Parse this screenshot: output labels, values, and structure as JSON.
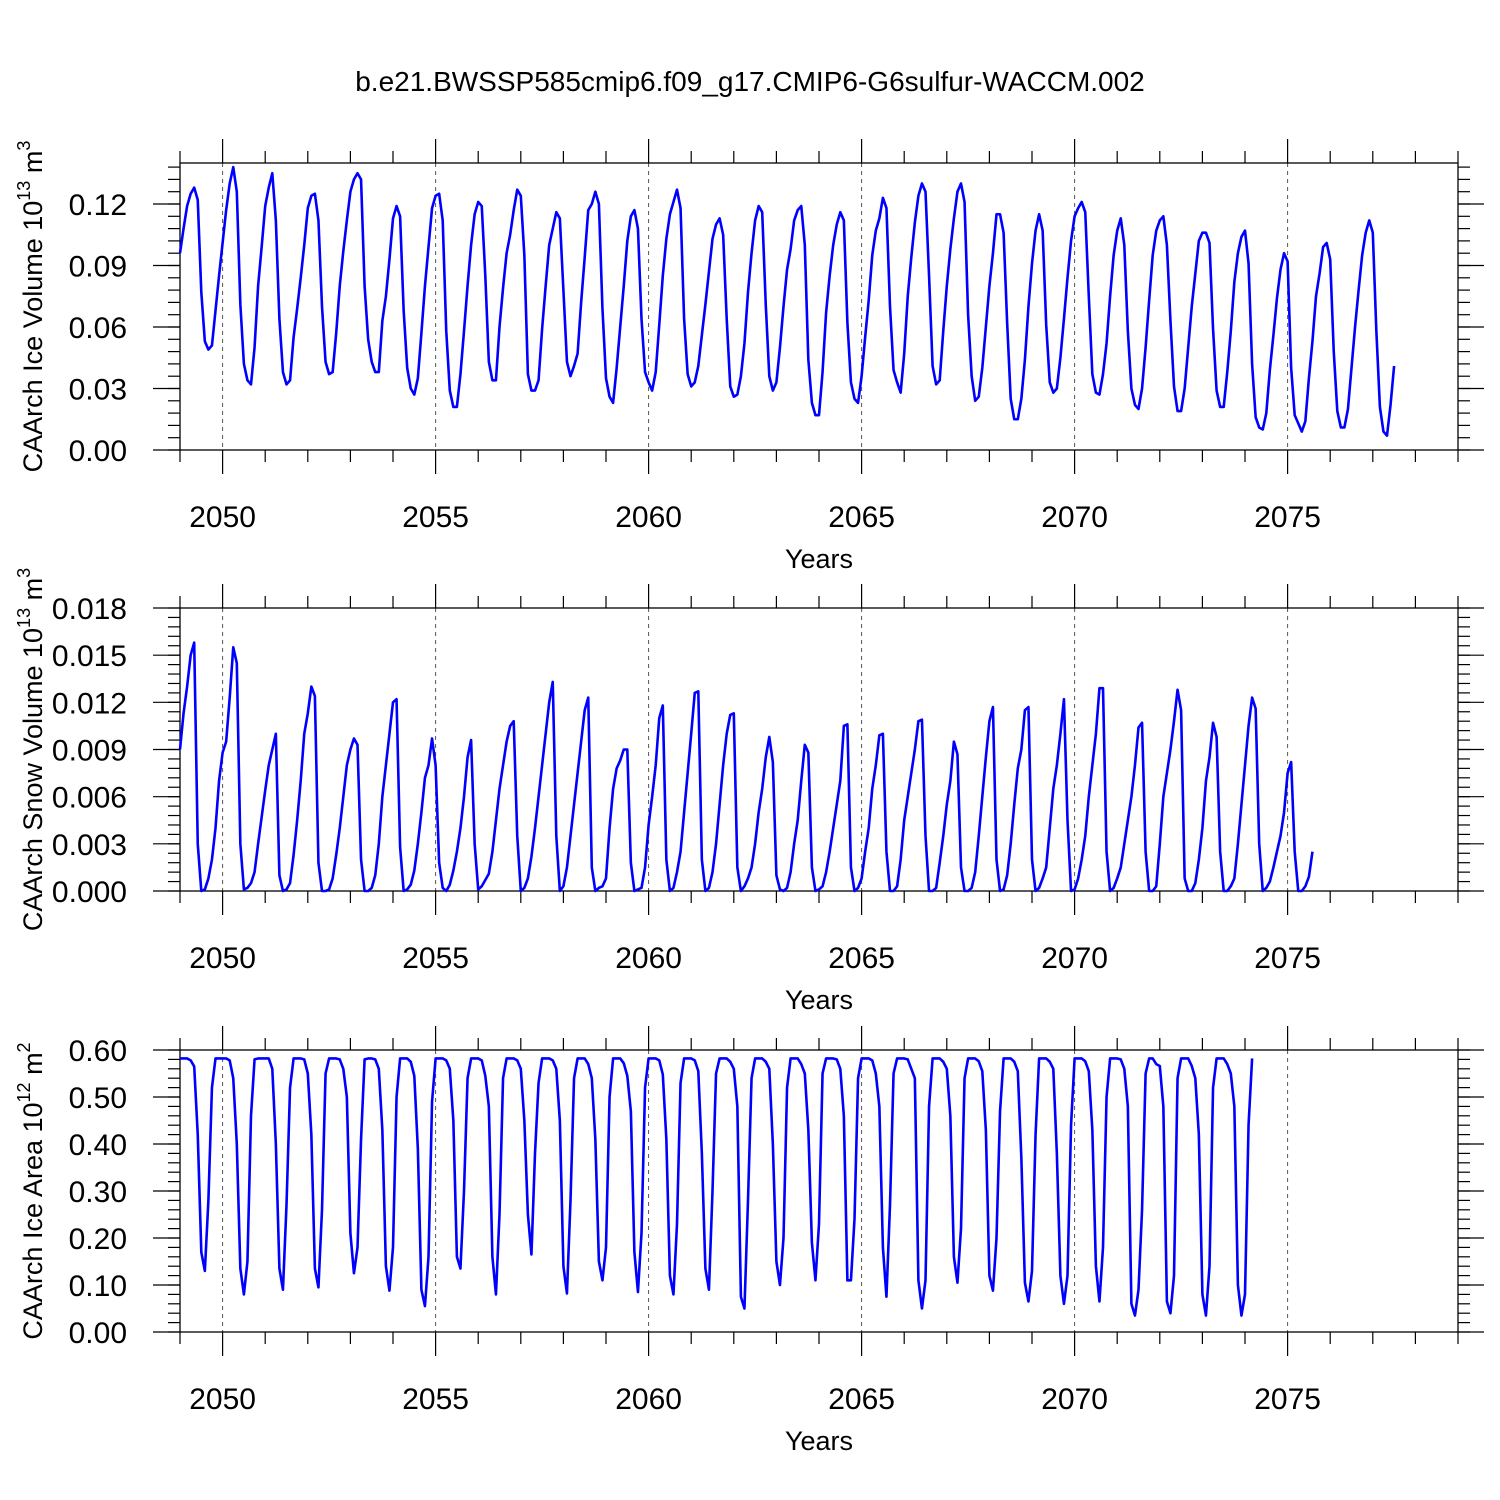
{
  "title": "b.e21.BWSSP585cmip6.f09_g17.CMIP6-G6sulfur-WACCM.002",
  "colors": {
    "line": "#0000ff",
    "grid": "#555555",
    "frame": "#000000"
  },
  "chart_data": [
    {
      "type": "line",
      "ylabel": "CAArch Ice Volume 10",
      "ylabel_sup": "13",
      "ylabel_unit": " m",
      "ylabel_unit_sup": "3",
      "xlabel": "Years",
      "xlim": [
        2049.0,
        2079.0
      ],
      "ylim": [
        0.0,
        0.14
      ],
      "yticks": [
        0.0,
        0.03,
        0.06,
        0.09,
        0.12
      ],
      "ytick_labels": [
        "0.00",
        "0.03",
        "0.06",
        "0.09",
        "0.12"
      ],
      "xticks": [
        2050,
        2055,
        2060,
        2065,
        2070,
        2075
      ],
      "xtick_labels": [
        "2050",
        "2055",
        "2060",
        "2065",
        "2070",
        "2075"
      ],
      "grid": "dashed vertical at major x ticks",
      "x_start": 2049.0,
      "x_step_months": 1,
      "values": [
        0.096,
        0.108,
        0.119,
        0.125,
        0.128,
        0.122,
        0.077,
        0.053,
        0.049,
        0.051,
        0.068,
        0.085,
        0.101,
        0.117,
        0.13,
        0.138,
        0.126,
        0.071,
        0.042,
        0.034,
        0.032,
        0.05,
        0.08,
        0.099,
        0.119,
        0.128,
        0.135,
        0.112,
        0.064,
        0.038,
        0.032,
        0.034,
        0.055,
        0.069,
        0.084,
        0.1,
        0.118,
        0.124,
        0.125,
        0.112,
        0.07,
        0.043,
        0.037,
        0.038,
        0.057,
        0.08,
        0.097,
        0.112,
        0.126,
        0.132,
        0.135,
        0.132,
        0.08,
        0.054,
        0.043,
        0.038,
        0.038,
        0.063,
        0.075,
        0.093,
        0.113,
        0.119,
        0.114,
        0.068,
        0.04,
        0.03,
        0.027,
        0.035,
        0.057,
        0.08,
        0.099,
        0.118,
        0.124,
        0.125,
        0.112,
        0.058,
        0.029,
        0.021,
        0.021,
        0.037,
        0.058,
        0.08,
        0.1,
        0.115,
        0.121,
        0.119,
        0.085,
        0.043,
        0.034,
        0.034,
        0.06,
        0.079,
        0.096,
        0.105,
        0.117,
        0.127,
        0.124,
        0.095,
        0.037,
        0.029,
        0.029,
        0.034,
        0.059,
        0.08,
        0.1,
        0.108,
        0.116,
        0.113,
        0.078,
        0.043,
        0.036,
        0.041,
        0.047,
        0.072,
        0.094,
        0.117,
        0.12,
        0.126,
        0.12,
        0.069,
        0.035,
        0.026,
        0.023,
        0.04,
        0.06,
        0.08,
        0.102,
        0.114,
        0.117,
        0.108,
        0.064,
        0.038,
        0.033,
        0.029,
        0.038,
        0.061,
        0.085,
        0.103,
        0.115,
        0.121,
        0.127,
        0.118,
        0.064,
        0.037,
        0.031,
        0.033,
        0.041,
        0.056,
        0.071,
        0.087,
        0.103,
        0.11,
        0.113,
        0.105,
        0.064,
        0.031,
        0.026,
        0.027,
        0.036,
        0.052,
        0.077,
        0.096,
        0.112,
        0.119,
        0.116,
        0.071,
        0.036,
        0.029,
        0.033,
        0.05,
        0.07,
        0.088,
        0.098,
        0.112,
        0.117,
        0.119,
        0.1,
        0.044,
        0.023,
        0.017,
        0.017,
        0.038,
        0.067,
        0.085,
        0.1,
        0.11,
        0.116,
        0.112,
        0.062,
        0.033,
        0.025,
        0.023,
        0.036,
        0.055,
        0.073,
        0.095,
        0.107,
        0.113,
        0.123,
        0.118,
        0.07,
        0.039,
        0.033,
        0.028,
        0.047,
        0.075,
        0.094,
        0.111,
        0.124,
        0.13,
        0.126,
        0.085,
        0.041,
        0.032,
        0.034,
        0.058,
        0.08,
        0.098,
        0.113,
        0.126,
        0.13,
        0.121,
        0.066,
        0.036,
        0.024,
        0.026,
        0.04,
        0.06,
        0.08,
        0.096,
        0.115,
        0.115,
        0.106,
        0.062,
        0.025,
        0.015,
        0.015,
        0.025,
        0.044,
        0.07,
        0.091,
        0.107,
        0.115,
        0.107,
        0.061,
        0.033,
        0.028,
        0.03,
        0.045,
        0.064,
        0.084,
        0.102,
        0.114,
        0.118,
        0.121,
        0.116,
        0.075,
        0.037,
        0.028,
        0.027,
        0.037,
        0.052,
        0.075,
        0.095,
        0.107,
        0.113,
        0.1,
        0.058,
        0.03,
        0.022,
        0.02,
        0.03,
        0.05,
        0.073,
        0.095,
        0.107,
        0.112,
        0.114,
        0.1,
        0.063,
        0.031,
        0.019,
        0.019,
        0.03,
        0.05,
        0.07,
        0.086,
        0.102,
        0.106,
        0.106,
        0.101,
        0.059,
        0.029,
        0.021,
        0.021,
        0.038,
        0.058,
        0.082,
        0.096,
        0.104,
        0.107,
        0.091,
        0.042,
        0.016,
        0.011,
        0.01,
        0.018,
        0.039,
        0.056,
        0.074,
        0.088,
        0.096,
        0.092,
        0.04,
        0.017,
        0.013,
        0.009,
        0.014,
        0.035,
        0.053,
        0.075,
        0.086,
        0.099,
        0.101,
        0.093,
        0.048,
        0.019,
        0.011,
        0.011,
        0.02,
        0.04,
        0.06,
        0.078,
        0.095,
        0.106,
        0.112,
        0.106,
        0.058,
        0.021,
        0.009,
        0.007,
        0.022,
        0.041
      ]
    },
    {
      "type": "line",
      "ylabel": "CAArch Snow Volume 10",
      "ylabel_sup": "13",
      "ylabel_unit": " m",
      "ylabel_unit_sup": "3",
      "xlabel": "Years",
      "xlim": [
        2049.0,
        2079.0
      ],
      "ylim": [
        0.0,
        0.018
      ],
      "yticks": [
        0.0,
        0.003,
        0.006,
        0.009,
        0.012,
        0.015,
        0.018
      ],
      "ytick_labels": [
        "0.000",
        "0.003",
        "0.006",
        "0.009",
        "0.012",
        "0.015",
        "0.018"
      ],
      "xticks": [
        2050,
        2055,
        2060,
        2065,
        2070,
        2075
      ],
      "xtick_labels": [
        "2050",
        "2055",
        "2060",
        "2065",
        "2070",
        "2075"
      ],
      "grid": "dashed vertical at major x ticks",
      "x_start": 2049.0,
      "x_step_months": 1,
      "values": [
        0.009,
        0.0113,
        0.013,
        0.015,
        0.0158,
        0.003,
        0.0,
        0.0001,
        0.0008,
        0.002,
        0.004,
        0.007,
        0.0088,
        0.0095,
        0.0123,
        0.0155,
        0.0145,
        0.003,
        0.0001,
        0.0002,
        0.0005,
        0.0012,
        0.003,
        0.0047,
        0.0064,
        0.008,
        0.009,
        0.01,
        0.001,
        0.0,
        0.0001,
        0.0005,
        0.0023,
        0.0045,
        0.007,
        0.01,
        0.0113,
        0.013,
        0.0124,
        0.0018,
        0.0,
        0.0,
        0.0001,
        0.0008,
        0.0023,
        0.004,
        0.006,
        0.008,
        0.009,
        0.0097,
        0.0093,
        0.002,
        0.0,
        0.0,
        0.0002,
        0.001,
        0.003,
        0.006,
        0.008,
        0.01,
        0.012,
        0.0122,
        0.0028,
        0.0,
        0.0001,
        0.0004,
        0.0013,
        0.003,
        0.005,
        0.0072,
        0.008,
        0.0097,
        0.008,
        0.0018,
        0.0002,
        0.0,
        0.0004,
        0.0013,
        0.0025,
        0.004,
        0.006,
        0.0085,
        0.0096,
        0.003,
        0.0001,
        0.0003,
        0.0007,
        0.0011,
        0.0025,
        0.0045,
        0.0065,
        0.008,
        0.0095,
        0.0105,
        0.0108,
        0.0035,
        0.0,
        0.0002,
        0.0008,
        0.0022,
        0.004,
        0.006,
        0.008,
        0.01,
        0.012,
        0.0133,
        0.0035,
        0.0,
        0.0003,
        0.0015,
        0.0035,
        0.0055,
        0.0075,
        0.0095,
        0.0115,
        0.0123,
        0.0015,
        0.0,
        0.0002,
        0.0003,
        0.0008,
        0.004,
        0.0065,
        0.0078,
        0.0083,
        0.009,
        0.009,
        0.0018,
        0.0,
        0.0001,
        0.0002,
        0.0015,
        0.0042,
        0.006,
        0.008,
        0.011,
        0.0118,
        0.002,
        0.0,
        0.0002,
        0.0012,
        0.0025,
        0.005,
        0.0075,
        0.01,
        0.0126,
        0.0127,
        0.002,
        0.0,
        0.0002,
        0.0012,
        0.003,
        0.0055,
        0.008,
        0.01,
        0.0112,
        0.0113,
        0.0015,
        0.0,
        0.0003,
        0.0008,
        0.0015,
        0.003,
        0.005,
        0.0065,
        0.0085,
        0.0098,
        0.0082,
        0.001,
        0.0001,
        0.0,
        0.0002,
        0.0012,
        0.003,
        0.0045,
        0.007,
        0.0093,
        0.0088,
        0.0015,
        0.0,
        0.0001,
        0.0003,
        0.0012,
        0.0025,
        0.004,
        0.0055,
        0.007,
        0.0105,
        0.0106,
        0.0015,
        0.0,
        0.0002,
        0.0008,
        0.0025,
        0.004,
        0.0065,
        0.008,
        0.0099,
        0.01,
        0.0025,
        0.0,
        0.0,
        0.0003,
        0.002,
        0.0045,
        0.006,
        0.0075,
        0.009,
        0.0108,
        0.0109,
        0.0035,
        0.0,
        0.0,
        0.0002,
        0.0018,
        0.0035,
        0.0055,
        0.007,
        0.0095,
        0.0087,
        0.0015,
        0.0,
        0.0,
        0.0002,
        0.0012,
        0.0035,
        0.006,
        0.0085,
        0.0108,
        0.0117,
        0.002,
        0.0,
        0.0001,
        0.001,
        0.003,
        0.0055,
        0.0078,
        0.009,
        0.0115,
        0.0117,
        0.002,
        0.0,
        0.0002,
        0.0008,
        0.0015,
        0.004,
        0.0065,
        0.008,
        0.01,
        0.0122,
        0.0045,
        0.0,
        0.0001,
        0.0008,
        0.002,
        0.0035,
        0.006,
        0.008,
        0.01,
        0.0129,
        0.0129,
        0.0025,
        0.0,
        0.0002,
        0.0008,
        0.0015,
        0.003,
        0.0045,
        0.006,
        0.008,
        0.0104,
        0.0107,
        0.0025,
        0.0,
        0.0,
        0.0003,
        0.003,
        0.006,
        0.0075,
        0.009,
        0.0108,
        0.0128,
        0.0115,
        0.0008,
        0.0,
        0.0,
        0.0005,
        0.002,
        0.004,
        0.007,
        0.0085,
        0.0107,
        0.0098,
        0.0025,
        0.0,
        0.0,
        0.0003,
        0.0008,
        0.003,
        0.0055,
        0.008,
        0.0105,
        0.0123,
        0.0116,
        0.003,
        0.0,
        0.0002,
        0.0006,
        0.0015,
        0.0025,
        0.0035,
        0.005,
        0.0075,
        0.0082,
        0.0025,
        0.0,
        0.0,
        0.0003,
        0.0009,
        0.0025
      ]
    },
    {
      "type": "line",
      "ylabel": "CAArch Ice Area 10",
      "ylabel_sup": "12",
      "ylabel_unit": " m",
      "ylabel_unit_sup": "2",
      "xlabel": "Years",
      "xlim": [
        2049.0,
        2079.0
      ],
      "ylim": [
        0.0,
        0.6
      ],
      "yticks": [
        0.0,
        0.1,
        0.2,
        0.3,
        0.4,
        0.5,
        0.6
      ],
      "ytick_labels": [
        "0.00",
        "0.10",
        "0.20",
        "0.30",
        "0.40",
        "0.50",
        "0.60"
      ],
      "xticks": [
        2050,
        2055,
        2060,
        2065,
        2070,
        2075
      ],
      "xtick_labels": [
        "2050",
        "2055",
        "2060",
        "2065",
        "2070",
        "2075"
      ],
      "grid": "dashed vertical at major x ticks",
      "x_start": 2049.0,
      "x_step_months": 1,
      "values": [
        0.582,
        0.582,
        0.582,
        0.578,
        0.565,
        0.42,
        0.17,
        0.13,
        0.28,
        0.52,
        0.582,
        0.582,
        0.582,
        0.582,
        0.578,
        0.54,
        0.4,
        0.135,
        0.08,
        0.15,
        0.46,
        0.58,
        0.582,
        0.582,
        0.582,
        0.582,
        0.56,
        0.4,
        0.135,
        0.09,
        0.27,
        0.52,
        0.582,
        0.582,
        0.582,
        0.58,
        0.55,
        0.42,
        0.135,
        0.095,
        0.26,
        0.55,
        0.582,
        0.582,
        0.582,
        0.58,
        0.56,
        0.5,
        0.21,
        0.125,
        0.18,
        0.41,
        0.58,
        0.582,
        0.582,
        0.58,
        0.56,
        0.43,
        0.14,
        0.088,
        0.18,
        0.5,
        0.582,
        0.582,
        0.582,
        0.575,
        0.545,
        0.39,
        0.09,
        0.055,
        0.16,
        0.49,
        0.582,
        0.582,
        0.582,
        0.578,
        0.56,
        0.45,
        0.16,
        0.135,
        0.3,
        0.54,
        0.582,
        0.582,
        0.582,
        0.578,
        0.545,
        0.48,
        0.16,
        0.08,
        0.25,
        0.54,
        0.582,
        0.582,
        0.582,
        0.578,
        0.56,
        0.45,
        0.25,
        0.165,
        0.38,
        0.53,
        0.582,
        0.582,
        0.582,
        0.578,
        0.56,
        0.45,
        0.14,
        0.082,
        0.28,
        0.54,
        0.582,
        0.582,
        0.582,
        0.57,
        0.54,
        0.41,
        0.15,
        0.11,
        0.18,
        0.5,
        0.582,
        0.582,
        0.582,
        0.572,
        0.545,
        0.47,
        0.17,
        0.085,
        0.21,
        0.52,
        0.582,
        0.582,
        0.582,
        0.578,
        0.548,
        0.41,
        0.12,
        0.08,
        0.23,
        0.53,
        0.582,
        0.582,
        0.582,
        0.578,
        0.555,
        0.38,
        0.135,
        0.09,
        0.3,
        0.55,
        0.582,
        0.582,
        0.582,
        0.575,
        0.56,
        0.48,
        0.075,
        0.05,
        0.28,
        0.54,
        0.582,
        0.582,
        0.582,
        0.575,
        0.56,
        0.4,
        0.15,
        0.1,
        0.2,
        0.52,
        0.582,
        0.582,
        0.582,
        0.57,
        0.55,
        0.43,
        0.19,
        0.11,
        0.23,
        0.55,
        0.582,
        0.582,
        0.582,
        0.58,
        0.56,
        0.46,
        0.11,
        0.11,
        0.24,
        0.54,
        0.582,
        0.582,
        0.582,
        0.578,
        0.55,
        0.48,
        0.18,
        0.075,
        0.27,
        0.55,
        0.582,
        0.582,
        0.582,
        0.58,
        0.56,
        0.54,
        0.11,
        0.05,
        0.11,
        0.48,
        0.582,
        0.582,
        0.582,
        0.575,
        0.56,
        0.46,
        0.16,
        0.105,
        0.22,
        0.54,
        0.582,
        0.582,
        0.582,
        0.576,
        0.555,
        0.43,
        0.12,
        0.088,
        0.2,
        0.47,
        0.582,
        0.582,
        0.582,
        0.575,
        0.555,
        0.37,
        0.105,
        0.065,
        0.13,
        0.42,
        0.582,
        0.582,
        0.582,
        0.575,
        0.56,
        0.38,
        0.12,
        0.06,
        0.12,
        0.44,
        0.582,
        0.582,
        0.582,
        0.576,
        0.555,
        0.43,
        0.14,
        0.065,
        0.18,
        0.5,
        0.582,
        0.582,
        0.582,
        0.58,
        0.56,
        0.48,
        0.06,
        0.035,
        0.09,
        0.26,
        0.55,
        0.582,
        0.582,
        0.57,
        0.566,
        0.48,
        0.065,
        0.04,
        0.12,
        0.54,
        0.582,
        0.582,
        0.582,
        0.566,
        0.54,
        0.42,
        0.08,
        0.035,
        0.14,
        0.52,
        0.582,
        0.582,
        0.582,
        0.57,
        0.55,
        0.48,
        0.1,
        0.035,
        0.08,
        0.44,
        0.582
      ]
    }
  ]
}
